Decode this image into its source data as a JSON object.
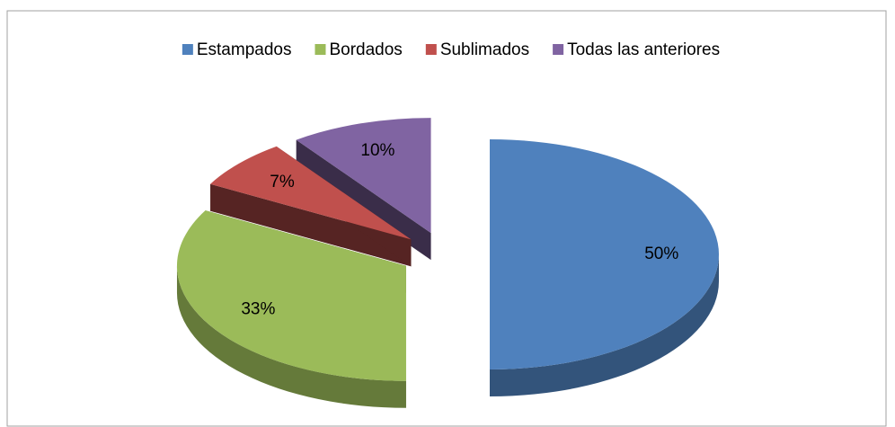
{
  "chart_data": {
    "type": "pie3d",
    "categories": [
      "Estampados",
      "Bordados",
      "Sublimados",
      "Todas las anteriores"
    ],
    "values": [
      50,
      33,
      7,
      10
    ],
    "value_labels": [
      "50%",
      "33%",
      "7%",
      "10%"
    ],
    "colors": [
      "#4f81bd",
      "#9bbb59",
      "#c0504d",
      "#8064a2"
    ],
    "legend": "top",
    "exploded": true
  }
}
